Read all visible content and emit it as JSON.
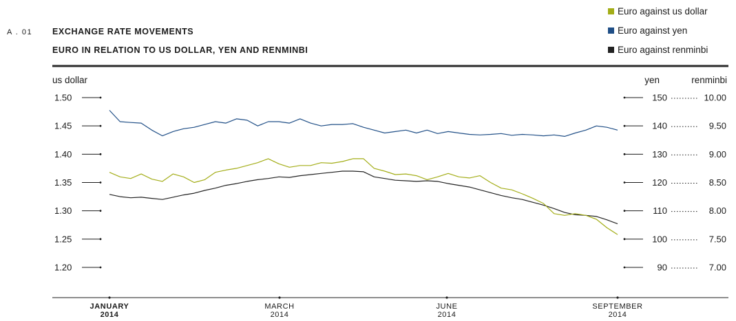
{
  "figure_number": "A . 01",
  "title": "EXCHANGE RATE MOVEMENTS",
  "subtitle": "EURO IN RELATION TO US DOLLAR, YEN AND RENMINBI",
  "legend": [
    {
      "label": "Euro against us dollar",
      "color": "#a3ad17"
    },
    {
      "label": "Euro against yen",
      "color": "#1f4e86"
    },
    {
      "label": "Euro against renminbi",
      "color": "#222222"
    }
  ],
  "chart_data": {
    "type": "line",
    "x_axis": {
      "ticks": [
        {
          "month": "JANUARY",
          "year": "2014",
          "emphasis": true
        },
        {
          "month": "MARCH",
          "year": "2014",
          "emphasis": false
        },
        {
          "month": "JUNE",
          "year": "2014",
          "emphasis": false
        },
        {
          "month": "SEPTEMBER",
          "year": "2014",
          "emphasis": false
        }
      ]
    },
    "left_axis": {
      "label": "us dollar",
      "ticks": [
        "1.50",
        "1.45",
        "1.40",
        "1.35",
        "1.30",
        "1.25",
        "1.20"
      ],
      "range": [
        1.2,
        1.5
      ]
    },
    "right_axes": [
      {
        "label": "yen",
        "ticks": [
          "150",
          "140",
          "130",
          "120",
          "110",
          "100",
          "90"
        ],
        "range": [
          90,
          150
        ]
      },
      {
        "label": "renminbi",
        "ticks": [
          "10.00",
          "9.50",
          "9.00",
          "8.50",
          "8.00",
          "7.50",
          "7.00"
        ],
        "range": [
          7.0,
          10.0
        ]
      }
    ],
    "grid": false,
    "series": [
      {
        "name": "Euro against us dollar",
        "axis": "usd",
        "color": "#a3ad17",
        "values": [
          1.368,
          1.36,
          1.357,
          1.365,
          1.356,
          1.352,
          1.365,
          1.36,
          1.35,
          1.355,
          1.368,
          1.372,
          1.375,
          1.38,
          1.385,
          1.392,
          1.383,
          1.377,
          1.38,
          1.38,
          1.385,
          1.384,
          1.387,
          1.392,
          1.392,
          1.375,
          1.37,
          1.364,
          1.365,
          1.362,
          1.355,
          1.36,
          1.366,
          1.36,
          1.358,
          1.362,
          1.35,
          1.34,
          1.337,
          1.33,
          1.322,
          1.313,
          1.295,
          1.292,
          1.295,
          1.292,
          1.285,
          1.27,
          1.258
        ]
      },
      {
        "name": "Euro against yen",
        "axis": "yen",
        "color": "#1f4e86",
        "values": [
          145.5,
          141.5,
          141.2,
          141.0,
          138.5,
          136.5,
          138.0,
          139.0,
          139.5,
          140.5,
          141.5,
          141.0,
          142.5,
          142.0,
          140.0,
          141.5,
          141.5,
          141.0,
          142.5,
          141.0,
          140.0,
          140.5,
          140.5,
          140.8,
          139.5,
          138.5,
          137.5,
          138.0,
          138.5,
          137.5,
          138.5,
          137.3,
          138.0,
          137.5,
          137.0,
          136.8,
          137.0,
          137.3,
          136.7,
          137.0,
          136.8,
          136.5,
          136.8,
          136.3,
          137.5,
          138.5,
          140.0,
          139.5,
          138.5
        ]
      },
      {
        "name": "Euro against renminbi",
        "axis": "cny",
        "color": "#222222",
        "values": [
          8.29,
          8.25,
          8.23,
          8.24,
          8.22,
          8.2,
          8.24,
          8.28,
          8.31,
          8.36,
          8.4,
          8.45,
          8.48,
          8.52,
          8.55,
          8.57,
          8.6,
          8.59,
          8.62,
          8.64,
          8.66,
          8.68,
          8.7,
          8.7,
          8.69,
          8.6,
          8.57,
          8.54,
          8.53,
          8.52,
          8.53,
          8.52,
          8.48,
          8.45,
          8.42,
          8.37,
          8.32,
          8.27,
          8.23,
          8.2,
          8.15,
          8.1,
          8.04,
          7.97,
          7.93,
          7.92,
          7.9,
          7.84,
          7.77
        ]
      }
    ]
  }
}
